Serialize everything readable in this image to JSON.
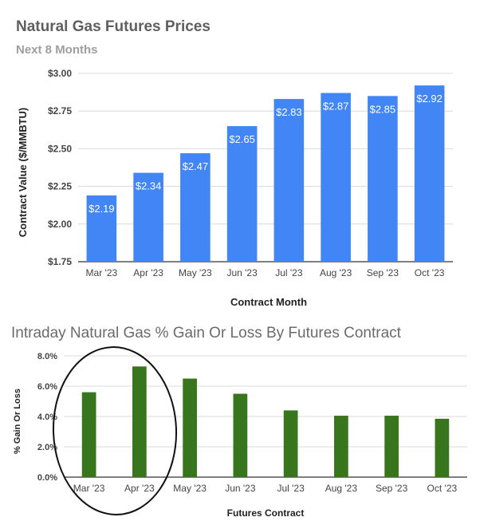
{
  "chart_data": [
    {
      "type": "bar",
      "title": "Natural Gas Futures Prices",
      "subtitle": "Next 8 Months",
      "xlabel": "Contract Month",
      "ylabel": "Contract Value ($/MMBTU)",
      "categories": [
        "Mar '23",
        "Apr '23",
        "May '23",
        "Jun '23",
        "Jul '23",
        "Aug '23",
        "Sep '23",
        "Oct '23"
      ],
      "values": [
        2.19,
        2.34,
        2.47,
        2.65,
        2.83,
        2.87,
        2.85,
        2.92
      ],
      "data_labels": [
        "$2.19",
        "$2.34",
        "$2.47",
        "$2.65",
        "$2.83",
        "$2.87",
        "$2.85",
        "$2.92"
      ],
      "ylim": [
        1.75,
        3.0
      ],
      "yticks": [
        1.75,
        2.0,
        2.25,
        2.5,
        2.75,
        3.0
      ],
      "ytick_labels": [
        "$1.75",
        "$2.00",
        "$2.25",
        "$2.50",
        "$2.75",
        "$3.00"
      ],
      "grid": true,
      "legend": "none",
      "bar_color": "#4285f4"
    },
    {
      "type": "bar",
      "title": "Intraday Natural Gas % Gain Or Loss By Futures Contract",
      "xlabel": "Futures Contract",
      "ylabel": "% Gain Or Loss",
      "categories": [
        "Mar '23",
        "Apr '23",
        "May '23",
        "Jun '23",
        "Jul '23",
        "Aug '23",
        "Sep '23",
        "Oct '23"
      ],
      "values": [
        5.6,
        7.3,
        6.5,
        5.5,
        4.4,
        4.05,
        4.05,
        3.85
      ],
      "ylim": [
        0,
        8
      ],
      "yticks": [
        0,
        2,
        4,
        6,
        8
      ],
      "ytick_labels": [
        "0.0%",
        "2.0%",
        "4.0%",
        "6.0%",
        "8.0%"
      ],
      "grid": true,
      "legend": "none",
      "bar_color": "#38761d",
      "annotation": "hand-drawn ellipse circling the Mar '23 and Apr '23 bars"
    }
  ]
}
